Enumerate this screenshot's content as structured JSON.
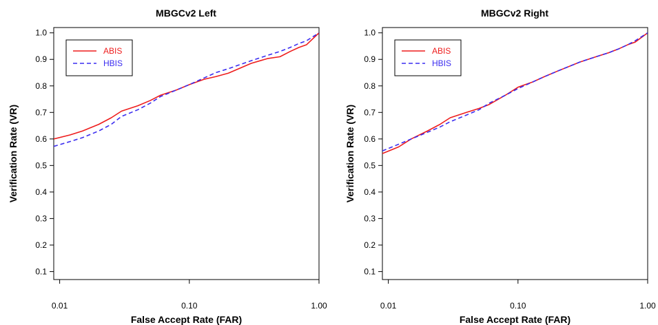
{
  "chart_data": [
    {
      "type": "line",
      "title": "MBGCv2 Left",
      "xlabel": "False Accept Rate (FAR)",
      "ylabel": "Verification Rate (VR)",
      "xscale": "log",
      "xlim": [
        0.009,
        1.0
      ],
      "ylim": [
        0.07,
        1.02
      ],
      "xticks": [
        0.01,
        0.1,
        1.0
      ],
      "xtick_labels": [
        "0.01",
        "0.10",
        "1.00"
      ],
      "yticks": [
        0.1,
        0.2,
        0.3,
        0.4,
        0.5,
        0.6,
        0.7,
        0.8,
        0.9,
        1.0
      ],
      "ytick_labels": [
        "0.1",
        "0.2",
        "0.3",
        "0.4",
        "0.5",
        "0.6",
        "0.7",
        "0.8",
        "0.9",
        "1.0"
      ],
      "grid": false,
      "legend_position": "top-left",
      "series": [
        {
          "name": "ABIS",
          "color": "#ee1c1c",
          "dash": "solid",
          "x": [
            0.009,
            0.012,
            0.015,
            0.02,
            0.025,
            0.03,
            0.04,
            0.05,
            0.06,
            0.08,
            0.1,
            0.13,
            0.16,
            0.2,
            0.3,
            0.4,
            0.5,
            0.6,
            0.7,
            0.8,
            1.0
          ],
          "y": [
            0.6,
            0.615,
            0.63,
            0.655,
            0.68,
            0.705,
            0.725,
            0.745,
            0.765,
            0.785,
            0.805,
            0.825,
            0.835,
            0.848,
            0.885,
            0.903,
            0.91,
            0.93,
            0.945,
            0.955,
            1.0
          ]
        },
        {
          "name": "HBIS",
          "color": "#3a2cf0",
          "dash": "dashed",
          "x": [
            0.009,
            0.012,
            0.015,
            0.02,
            0.025,
            0.03,
            0.04,
            0.05,
            0.06,
            0.08,
            0.1,
            0.13,
            0.16,
            0.2,
            0.3,
            0.4,
            0.5,
            0.6,
            0.7,
            0.8,
            1.0
          ],
          "y": [
            0.572,
            0.59,
            0.605,
            0.63,
            0.655,
            0.685,
            0.71,
            0.735,
            0.76,
            0.785,
            0.805,
            0.83,
            0.85,
            0.865,
            0.895,
            0.915,
            0.93,
            0.945,
            0.96,
            0.97,
            1.0
          ]
        }
      ]
    },
    {
      "type": "line",
      "title": "MBGCv2 Right",
      "xlabel": "False Accept Rate (FAR)",
      "ylabel": "Verification Rate (VR)",
      "xscale": "log",
      "xlim": [
        0.009,
        1.0
      ],
      "ylim": [
        0.07,
        1.02
      ],
      "xticks": [
        0.01,
        0.1,
        1.0
      ],
      "xtick_labels": [
        "0.01",
        "0.10",
        "1.00"
      ],
      "yticks": [
        0.1,
        0.2,
        0.3,
        0.4,
        0.5,
        0.6,
        0.7,
        0.8,
        0.9,
        1.0
      ],
      "ytick_labels": [
        "0.1",
        "0.2",
        "0.3",
        "0.4",
        "0.5",
        "0.6",
        "0.7",
        "0.8",
        "0.9",
        "1.0"
      ],
      "grid": false,
      "legend_position": "top-left",
      "series": [
        {
          "name": "ABIS",
          "color": "#ee1c1c",
          "dash": "solid",
          "x": [
            0.009,
            0.012,
            0.015,
            0.02,
            0.025,
            0.03,
            0.04,
            0.05,
            0.06,
            0.08,
            0.1,
            0.13,
            0.16,
            0.2,
            0.3,
            0.4,
            0.5,
            0.6,
            0.7,
            0.8,
            1.0
          ],
          "y": [
            0.545,
            0.57,
            0.6,
            0.63,
            0.655,
            0.68,
            0.7,
            0.715,
            0.73,
            0.765,
            0.795,
            0.815,
            0.835,
            0.855,
            0.89,
            0.91,
            0.925,
            0.94,
            0.955,
            0.965,
            1.0
          ]
        },
        {
          "name": "HBIS",
          "color": "#3a2cf0",
          "dash": "dashed",
          "x": [
            0.009,
            0.012,
            0.015,
            0.02,
            0.025,
            0.03,
            0.04,
            0.05,
            0.06,
            0.08,
            0.1,
            0.13,
            0.16,
            0.2,
            0.3,
            0.4,
            0.5,
            0.6,
            0.7,
            0.8,
            1.0
          ],
          "y": [
            0.555,
            0.58,
            0.6,
            0.625,
            0.645,
            0.665,
            0.69,
            0.71,
            0.735,
            0.765,
            0.79,
            0.815,
            0.835,
            0.855,
            0.89,
            0.91,
            0.925,
            0.94,
            0.955,
            0.97,
            1.0
          ]
        }
      ]
    }
  ]
}
